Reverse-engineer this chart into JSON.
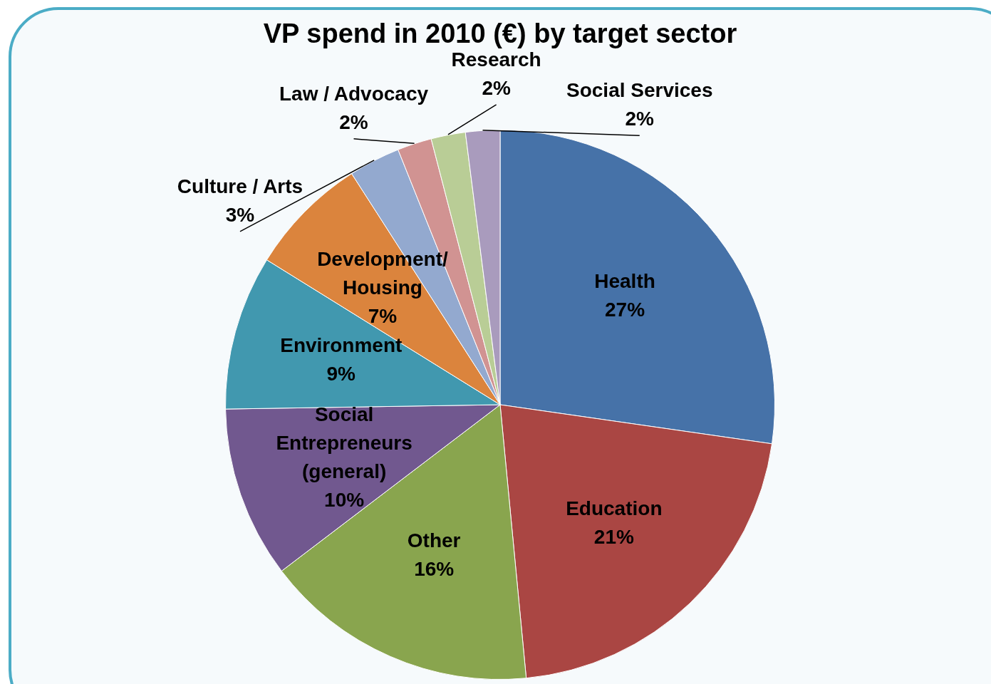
{
  "chart_data": {
    "type": "pie",
    "title": "VP spend in 2010 (€) by target sector",
    "categories": [
      "Health",
      "Education",
      "Other",
      "Social Entrepreneurs (general)",
      "Environment",
      "Development/ Housing",
      "Culture / Arts",
      "Law / Advocacy",
      "Research",
      "Social Services"
    ],
    "values": [
      27,
      21,
      16,
      10,
      9,
      7,
      3,
      2,
      2,
      2
    ],
    "value_labels": [
      "27%",
      "21%",
      "16%",
      "10%",
      "9%",
      "7%",
      "3%",
      "2%",
      "2%",
      "2%"
    ],
    "colors": [
      "#4672a8",
      "#aa4643",
      "#89a54e",
      "#71588f",
      "#4198af",
      "#db843d",
      "#93a9cf",
      "#d19392",
      "#b9cd96",
      "#a99bbd"
    ],
    "legend": false
  }
}
